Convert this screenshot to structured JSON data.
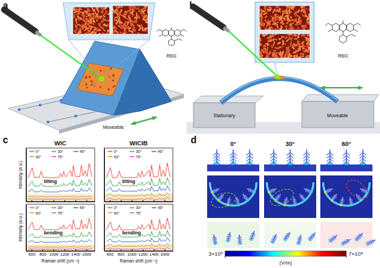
{
  "panels": {
    "a": {
      "label": "a",
      "molecule": "R6G",
      "moveable": "Moveable"
    },
    "b": {
      "label": "b",
      "molecule": "R6G",
      "stationary": "Stationary",
      "moveable": "Moveable"
    },
    "c": {
      "label": "c",
      "column_titles": [
        "WIC",
        "WICIB"
      ]
    },
    "d": {
      "label": "d",
      "angles": [
        "0°",
        "30°",
        "60°"
      ],
      "colorbar": {
        "range": [
          3000000,
          700000000
        ],
        "ticks": [
          {
            "value": 3000000,
            "label": "3×10⁶"
          },
          {
            "value": 700000000,
            "label": "7×10⁸"
          }
        ],
        "unit": "(V/m)"
      }
    }
  },
  "chart_data": [
    {
      "type": "line",
      "annotation": "tilting",
      "ylabel": "Intensity (a.u.)",
      "tick_labels": false,
      "legend": "top",
      "x": [
        540,
        612,
        650,
        740,
        774,
        810,
        1000,
        1100,
        1127,
        1160,
        1185,
        1220,
        1310,
        1340,
        1362,
        1400,
        1480,
        1509,
        1540,
        1575,
        1610,
        1650,
        1700
      ],
      "xlim": [
        500,
        1750
      ],
      "xticks": [
        600,
        800,
        1000,
        1200,
        1400,
        1600
      ],
      "ylim": [
        0,
        13.5
      ],
      "series": [
        {
          "name": "0°",
          "color": "#e53b2c",
          "values": [
            6.0,
            8.5,
            6.1,
            6.1,
            7.6,
            6.1,
            6.0,
            6.1,
            7.1,
            6.2,
            7.6,
            6.2,
            7.8,
            6.3,
            9.1,
            6.3,
            6.3,
            9.2,
            6.4,
            7.8,
            6.3,
            9.6,
            6.2
          ]
        },
        {
          "name": "30°",
          "color": "#2f9e44",
          "values": [
            3.8,
            5.1,
            3.9,
            3.9,
            4.6,
            3.9,
            3.8,
            3.9,
            4.3,
            3.9,
            4.6,
            4.0,
            4.7,
            4.0,
            5.4,
            4.0,
            4.0,
            5.4,
            4.1,
            4.7,
            4.0,
            5.6,
            3.9
          ]
        },
        {
          "name": "45°",
          "color": "#2b56c6",
          "values": [
            2.4,
            3.1,
            2.45,
            2.45,
            2.85,
            2.45,
            2.4,
            2.45,
            2.7,
            2.5,
            2.85,
            2.5,
            2.9,
            2.5,
            3.25,
            2.5,
            2.5,
            3.3,
            2.55,
            2.9,
            2.5,
            3.4,
            2.45
          ]
        },
        {
          "name": "60°",
          "color": "#b59a1e",
          "values": [
            1.2,
            1.4,
            1.2,
            1.2,
            1.3,
            1.2,
            1.2,
            1.2,
            1.3,
            1.2,
            1.3,
            1.2,
            1.3,
            1.2,
            1.4,
            1.2,
            1.2,
            1.4,
            1.2,
            1.3,
            1.2,
            1.4,
            1.2
          ]
        },
        {
          "name": "75°",
          "color": "#d63ad6",
          "values": [
            0.6,
            0.7,
            0.6,
            0.6,
            0.65,
            0.6,
            0.6,
            0.6,
            0.65,
            0.6,
            0.65,
            0.6,
            0.65,
            0.6,
            0.7,
            0.6,
            0.6,
            0.7,
            0.6,
            0.65,
            0.6,
            0.75,
            0.6
          ]
        }
      ]
    },
    {
      "type": "line",
      "annotation": "bending",
      "ylabel": "Intensity (a.u.)",
      "xlabel": "Raman shift (cm⁻¹)",
      "tick_labels": "x",
      "legend": "top",
      "x": [
        540,
        612,
        650,
        740,
        774,
        810,
        1000,
        1100,
        1127,
        1160,
        1185,
        1220,
        1310,
        1340,
        1362,
        1400,
        1480,
        1509,
        1540,
        1575,
        1610,
        1650,
        1700
      ],
      "xlim": [
        500,
        1750
      ],
      "xticks": [
        600,
        800,
        1000,
        1200,
        1400,
        1600
      ],
      "ylim": [
        0,
        13.5
      ],
      "series": [
        {
          "name": "0°",
          "color": "#e53b2c",
          "values": [
            6.2,
            8.3,
            6.2,
            6.2,
            7.4,
            6.2,
            6.1,
            6.2,
            7.0,
            6.3,
            7.5,
            6.3,
            7.6,
            6.3,
            8.9,
            6.4,
            6.4,
            9.0,
            6.4,
            7.7,
            6.4,
            9.4,
            6.3
          ]
        },
        {
          "name": "30°",
          "color": "#2f9e44",
          "values": [
            3.9,
            5.0,
            3.9,
            3.9,
            4.5,
            3.9,
            3.9,
            3.9,
            4.2,
            4.0,
            4.5,
            4.0,
            4.6,
            4.0,
            5.2,
            4.0,
            4.1,
            5.3,
            4.1,
            4.6,
            4.1,
            5.5,
            4.0
          ]
        },
        {
          "name": "45°",
          "color": "#2b56c6",
          "values": [
            2.5,
            3.0,
            2.5,
            2.5,
            2.8,
            2.5,
            2.5,
            2.5,
            2.7,
            2.5,
            2.8,
            2.5,
            2.85,
            2.55,
            3.2,
            2.55,
            2.55,
            3.2,
            2.55,
            2.85,
            2.55,
            3.3,
            2.5
          ]
        },
        {
          "name": "60°",
          "color": "#b59a1e",
          "values": [
            1.1,
            1.25,
            1.1,
            1.1,
            1.2,
            1.1,
            1.1,
            1.1,
            1.15,
            1.1,
            1.2,
            1.1,
            1.2,
            1.1,
            1.3,
            1.1,
            1.1,
            1.3,
            1.1,
            1.2,
            1.1,
            1.3,
            1.1
          ]
        },
        {
          "name": "75°",
          "color": "#d63ad6",
          "values": [
            0.5,
            0.6,
            0.5,
            0.5,
            0.55,
            0.5,
            0.5,
            0.5,
            0.55,
            0.5,
            0.55,
            0.5,
            0.55,
            0.5,
            0.6,
            0.5,
            0.5,
            0.6,
            0.5,
            0.55,
            0.5,
            0.6,
            0.5
          ]
        }
      ]
    },
    {
      "type": "line",
      "annotation": "tilting",
      "tick_labels": false,
      "legend": "top",
      "x": [
        540,
        612,
        650,
        740,
        774,
        810,
        1000,
        1100,
        1127,
        1160,
        1185,
        1220,
        1310,
        1340,
        1362,
        1400,
        1480,
        1509,
        1540,
        1575,
        1610,
        1650,
        1700
      ],
      "xlim": [
        500,
        1750
      ],
      "xticks": [
        600,
        800,
        1000,
        1200,
        1400,
        1600
      ],
      "ylim": [
        0,
        13.5
      ],
      "series": [
        {
          "name": "0°",
          "color": "#e53b2c",
          "values": [
            6.0,
            8.6,
            6.0,
            6.1,
            7.7,
            6.1,
            6.0,
            6.1,
            7.2,
            6.1,
            7.7,
            6.2,
            7.9,
            6.2,
            9.2,
            6.2,
            6.3,
            9.3,
            6.3,
            7.9,
            6.3,
            9.7,
            6.2
          ]
        },
        {
          "name": "30°",
          "color": "#2f9e44",
          "values": [
            4.0,
            5.4,
            4.0,
            4.0,
            4.9,
            4.0,
            4.0,
            4.0,
            4.5,
            4.1,
            4.9,
            4.1,
            5.0,
            4.1,
            5.8,
            4.1,
            4.1,
            5.8,
            4.2,
            5.0,
            4.2,
            6.0,
            4.1
          ]
        },
        {
          "name": "45°",
          "color": "#2b56c6",
          "values": [
            2.6,
            3.6,
            2.6,
            2.6,
            3.2,
            2.6,
            2.6,
            2.6,
            3.0,
            2.6,
            3.2,
            2.7,
            3.3,
            2.7,
            3.8,
            2.7,
            2.7,
            3.8,
            2.7,
            3.3,
            2.7,
            4.0,
            2.6
          ]
        },
        {
          "name": "60°",
          "color": "#b59a1e",
          "values": [
            1.4,
            2.1,
            1.4,
            1.4,
            1.8,
            1.4,
            1.4,
            1.4,
            1.6,
            1.4,
            1.8,
            1.4,
            1.8,
            1.4,
            2.2,
            1.4,
            1.4,
            2.2,
            1.4,
            1.8,
            1.4,
            2.3,
            1.4
          ]
        },
        {
          "name": "75°",
          "color": "#d63ad6",
          "values": [
            0.5,
            0.9,
            0.5,
            0.5,
            0.8,
            0.5,
            0.5,
            0.5,
            0.7,
            0.5,
            0.8,
            0.5,
            0.8,
            0.5,
            1.0,
            0.5,
            0.5,
            1.0,
            0.5,
            0.8,
            0.5,
            1.1,
            0.5
          ]
        }
      ]
    },
    {
      "type": "line",
      "annotation": "bending",
      "xlabel": "Raman shift (cm⁻¹)",
      "tick_labels": "x",
      "legend": "top",
      "x": [
        540,
        612,
        650,
        740,
        774,
        810,
        1000,
        1100,
        1127,
        1160,
        1185,
        1220,
        1310,
        1340,
        1362,
        1400,
        1480,
        1509,
        1540,
        1575,
        1610,
        1650,
        1700
      ],
      "xlim": [
        500,
        1750
      ],
      "xticks": [
        600,
        800,
        1000,
        1200,
        1400,
        1600
      ],
      "ylim": [
        0,
        13.5
      ],
      "series": [
        {
          "name": "0°",
          "color": "#e53b2c",
          "values": [
            6.1,
            8.4,
            6.1,
            6.1,
            7.5,
            6.1,
            6.1,
            6.2,
            7.1,
            6.2,
            7.6,
            6.2,
            7.7,
            6.2,
            9.0,
            6.3,
            6.3,
            9.1,
            6.3,
            7.7,
            6.3,
            9.5,
            6.2
          ]
        },
        {
          "name": "30°",
          "color": "#2f9e44",
          "values": [
            4.0,
            5.3,
            4.0,
            4.0,
            4.8,
            4.0,
            4.0,
            4.0,
            4.4,
            4.0,
            4.8,
            4.1,
            4.9,
            4.1,
            5.6,
            4.1,
            4.1,
            5.7,
            4.1,
            4.9,
            4.1,
            5.9,
            4.0
          ]
        },
        {
          "name": "45°",
          "color": "#2b56c6",
          "values": [
            2.6,
            3.5,
            2.6,
            2.6,
            3.1,
            2.6,
            2.6,
            2.6,
            2.9,
            2.6,
            3.1,
            2.6,
            3.2,
            2.6,
            3.7,
            2.7,
            2.7,
            3.7,
            2.7,
            3.2,
            2.7,
            3.9,
            2.6
          ]
        },
        {
          "name": "60°",
          "color": "#b59a1e",
          "values": [
            1.3,
            2.0,
            1.3,
            1.3,
            1.7,
            1.3,
            1.3,
            1.3,
            1.5,
            1.3,
            1.7,
            1.3,
            1.7,
            1.3,
            2.1,
            1.3,
            1.3,
            2.1,
            1.3,
            1.7,
            1.3,
            2.2,
            1.3
          ]
        },
        {
          "name": "75°",
          "color": "#d63ad6",
          "values": [
            0.5,
            0.85,
            0.5,
            0.5,
            0.75,
            0.5,
            0.5,
            0.5,
            0.65,
            0.5,
            0.75,
            0.5,
            0.75,
            0.5,
            0.95,
            0.5,
            0.5,
            0.95,
            0.5,
            0.75,
            0.5,
            1.05,
            0.5
          ]
        }
      ]
    }
  ]
}
